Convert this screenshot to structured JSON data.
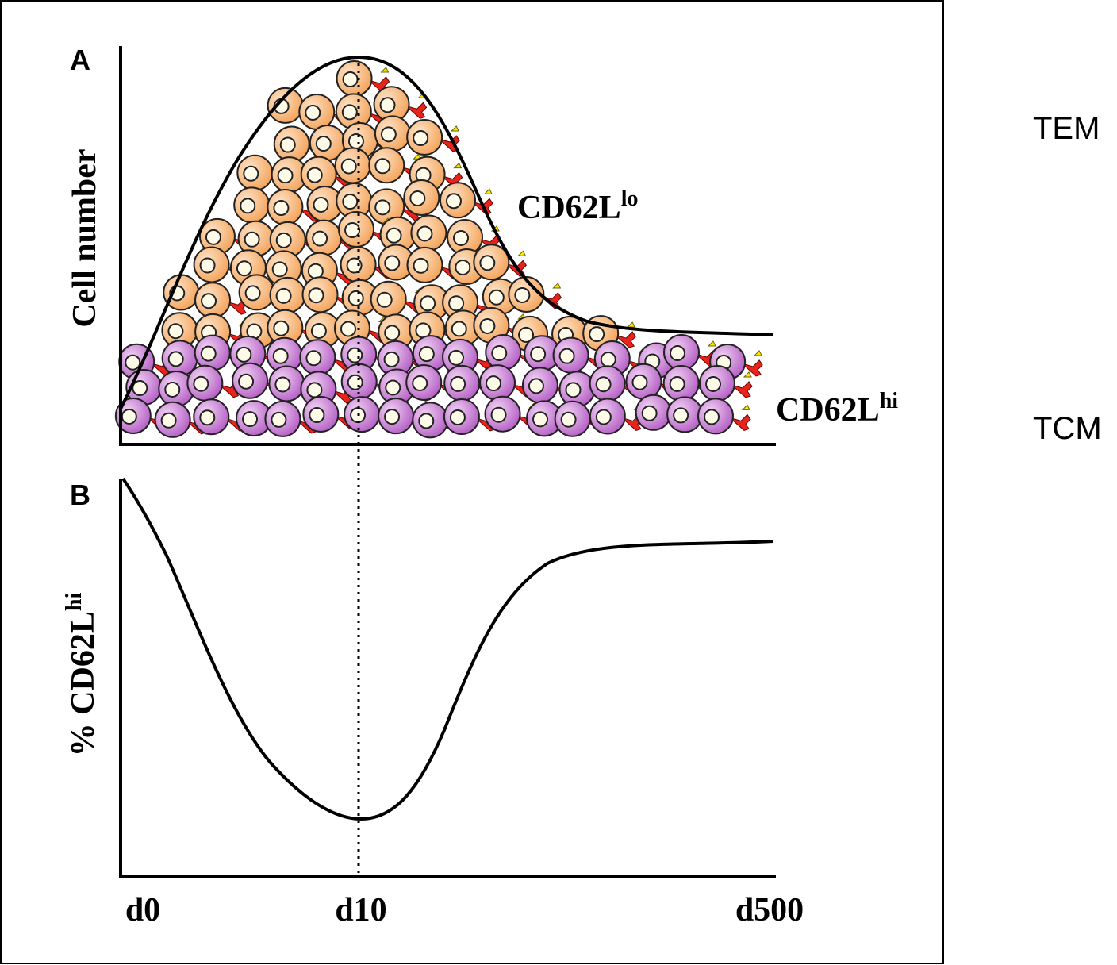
{
  "panel_a": {
    "label": "A",
    "y_axis_label": "Cell number",
    "curve_label": {
      "base": "CD62L",
      "sup": "lo"
    },
    "floor_label": {
      "base": "CD62L",
      "sup": "hi"
    }
  },
  "panel_b": {
    "label": "B",
    "y_axis_label": {
      "prefix": "% CD62L",
      "sup": "hi"
    }
  },
  "x_labels": [
    "d0",
    "d10",
    "d500"
  ],
  "side_labels": [
    "TEM",
    "TCM"
  ]
}
